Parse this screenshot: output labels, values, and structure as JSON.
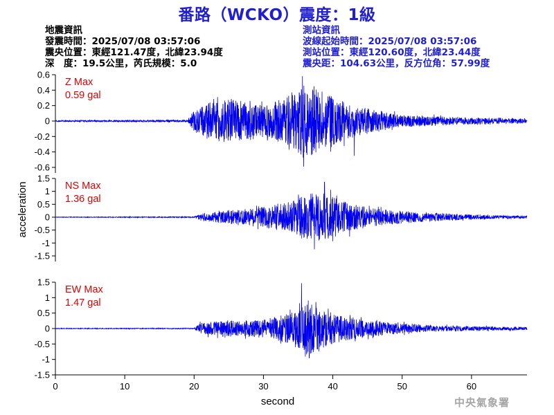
{
  "title": "番路（WCKO）震度：1級",
  "event_info": {
    "heading": "地震資訊",
    "origin_time": "發震時間：2025/07/08 03:57:06",
    "epicenter": "震央位置：東經121.47度，北緯23.94度",
    "depth_magnitude": "深　度：19.5公里，芮氏規模：5.0"
  },
  "station_info": {
    "heading": "測站資訊",
    "wave_start": "波線起始時間：2025/07/08 03:57:06",
    "station_location": "測站位置：東經120.60度，北緯23.44度",
    "distance_azimuth": "震央距：104.63公里，反方位角：57.99度"
  },
  "watermark": "中央氣象署",
  "colors": {
    "title": "#1f1fd1",
    "trace": "#0000ee",
    "max_label": "#e00000",
    "axis": "#000000",
    "watermark": "#a6a6a6"
  },
  "chart_data": {
    "type": "line",
    "xlabel": "second",
    "ylabel": "acceleration",
    "xlim": [
      0,
      68
    ],
    "x_ticks": [
      0,
      10,
      20,
      30,
      40,
      50,
      60
    ],
    "grid": false,
    "panels": [
      {
        "name": "Z",
        "max_label": "Z Max",
        "max_value": "0.59 gal",
        "ylim": [
          -0.6,
          0.6
        ],
        "y_ticks": [
          0.6,
          0.4,
          0.2,
          0,
          -0.2,
          -0.4,
          -0.6
        ],
        "envelope": [
          [
            0,
            0.01
          ],
          [
            19,
            0.015
          ],
          [
            20,
            0.15
          ],
          [
            22,
            0.25
          ],
          [
            26,
            0.3
          ],
          [
            30,
            0.2
          ],
          [
            34,
            0.35
          ],
          [
            36,
            0.5
          ],
          [
            37,
            0.45
          ],
          [
            40,
            0.35
          ],
          [
            43,
            0.2
          ],
          [
            50,
            0.08
          ],
          [
            58,
            0.05
          ],
          [
            68,
            0.03
          ]
        ],
        "peaks": [
          [
            35.8,
            -0.59
          ],
          [
            37.3,
            0.45
          ],
          [
            43.1,
            -0.45
          ]
        ]
      },
      {
        "name": "NS",
        "max_label": "NS Max",
        "max_value": "1.36 gal",
        "ylim": [
          -1.5,
          1.5
        ],
        "y_ticks": [
          1.5,
          1,
          0.5,
          0,
          -0.5,
          -1,
          -1.5
        ],
        "envelope": [
          [
            0,
            0.01
          ],
          [
            20,
            0.02
          ],
          [
            21,
            0.15
          ],
          [
            26,
            0.3
          ],
          [
            30,
            0.4
          ],
          [
            34,
            0.6
          ],
          [
            36,
            0.9
          ],
          [
            38,
            1.0
          ],
          [
            40,
            0.8
          ],
          [
            43,
            0.5
          ],
          [
            46,
            0.35
          ],
          [
            52,
            0.2
          ],
          [
            60,
            0.1
          ],
          [
            68,
            0.05
          ]
        ],
        "peaks": [
          [
            38.8,
            1.36
          ],
          [
            38.0,
            -0.9
          ]
        ]
      },
      {
        "name": "EW",
        "max_label": "EW Max",
        "max_value": "1.47 gal",
        "ylim": [
          -1.5,
          1.5
        ],
        "y_ticks": [
          1.5,
          1,
          0.5,
          0,
          -0.5,
          -1,
          -1.5
        ],
        "envelope": [
          [
            0,
            0.01
          ],
          [
            20,
            0.015
          ],
          [
            21,
            0.2
          ],
          [
            25,
            0.25
          ],
          [
            30,
            0.3
          ],
          [
            34,
            0.5
          ],
          [
            35.5,
            0.8
          ],
          [
            36.5,
            1.0
          ],
          [
            38,
            0.7
          ],
          [
            40,
            0.5
          ],
          [
            43,
            0.35
          ],
          [
            48,
            0.2
          ],
          [
            55,
            0.1
          ],
          [
            68,
            0.05
          ]
        ],
        "peaks": [
          [
            35.5,
            1.47
          ],
          [
            36.6,
            -0.95
          ]
        ]
      }
    ]
  }
}
